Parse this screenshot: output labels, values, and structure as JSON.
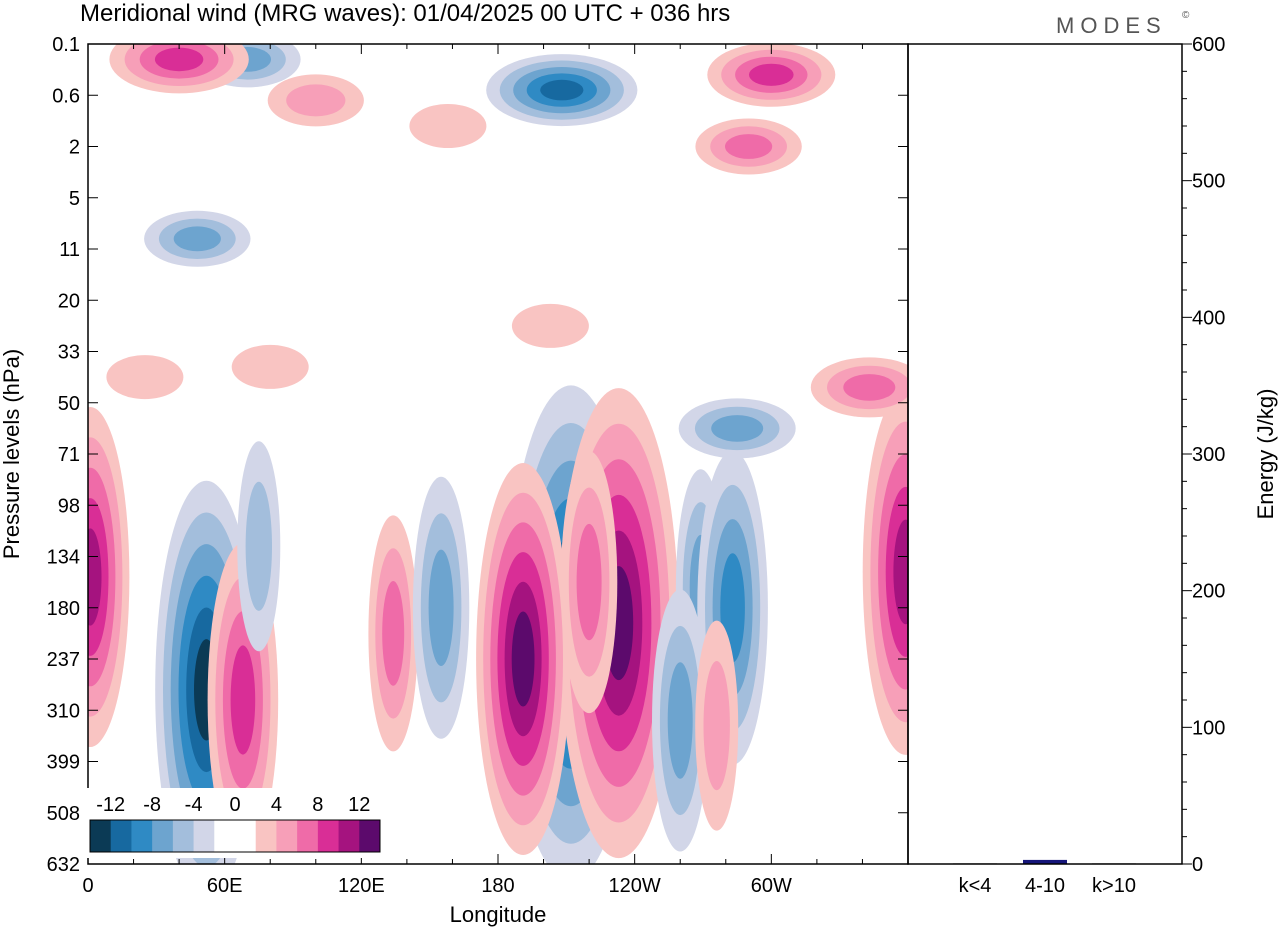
{
  "title": "Meridional wind (MRG waves):  01/04/2025  00 UTC  + 036 hrs",
  "logo": "MODES",
  "logo_mark": "©",
  "colors": {
    "neg6": "#0b3a55",
    "neg5": "#1769a0",
    "neg4": "#2f8ac4",
    "neg3": "#6da4cf",
    "neg2": "#a3bedc",
    "neg1": "#d2d6e8",
    "zero": "#ffffff",
    "pos1": "#f9c4c2",
    "pos2": "#f79fb8",
    "pos3": "#ef6ba8",
    "pos4": "#d92e96",
    "pos5": "#a5137f",
    "pos6": "#5c0a6c",
    "bar": "#16167a"
  },
  "chart_data": [
    {
      "type": "heatmap",
      "xlabel": "Longitude",
      "ylabel": "Pressure levels (hPa)",
      "x_ticks": [
        "0",
        "60E",
        "120E",
        "180",
        "120W",
        "60W"
      ],
      "y_ticks": [
        "0.1",
        "0.6",
        "2",
        "5",
        "11",
        "20",
        "33",
        "50",
        "71",
        "98",
        "134",
        "180",
        "237",
        "310",
        "399",
        "508",
        "632"
      ],
      "colorbar_labels": [
        "-12",
        "-8",
        "-4",
        "0",
        "4",
        "8",
        "12"
      ],
      "colorbar_levels": [
        -14,
        -12,
        -10,
        -8,
        -6,
        -4,
        -2,
        2,
        4,
        6,
        8,
        10,
        12,
        14
      ],
      "features": [
        {
          "lon": 212,
          "level": 11.5,
          "value": -16
        },
        {
          "lon": 233,
          "level": 11.3,
          "value": 15
        },
        {
          "lon": 191,
          "level": 12.0,
          "value": 12
        },
        {
          "lon": 220,
          "level": 10.5,
          "value": 7
        },
        {
          "lon": 52,
          "level": 12.6,
          "value": -13
        },
        {
          "lon": 68,
          "level": 12.8,
          "value": 9
        },
        {
          "lon": 1,
          "level": 10.4,
          "value": 10
        },
        {
          "lon": 134,
          "level": 11.5,
          "value": 6
        },
        {
          "lon": 155,
          "level": 11.0,
          "value": -7
        },
        {
          "lon": 269,
          "level": 10.6,
          "value": -6
        },
        {
          "lon": 283,
          "level": 11.0,
          "value": -9
        },
        {
          "lon": 260,
          "level": 13.2,
          "value": -7
        },
        {
          "lon": 276,
          "level": 13.3,
          "value": 5
        },
        {
          "lon": 359,
          "level": 10.3,
          "value": 11
        },
        {
          "lon": 208,
          "level": 0.9,
          "value": -10
        },
        {
          "lon": 70,
          "level": 0.3,
          "value": -6
        },
        {
          "lon": 40,
          "level": 0.3,
          "value": 9
        },
        {
          "lon": 300,
          "level": 0.6,
          "value": 8
        },
        {
          "lon": 290,
          "level": 2.0,
          "value": 6
        },
        {
          "lon": 100,
          "level": 1.1,
          "value": 5
        },
        {
          "lon": 158,
          "level": 1.6,
          "value": 3
        },
        {
          "lon": 48,
          "level": 3.8,
          "value": -6
        },
        {
          "lon": 285,
          "level": 7.5,
          "value": -7
        },
        {
          "lon": 343,
          "level": 6.7,
          "value": 7
        },
        {
          "lon": 75,
          "level": 9.8,
          "value": -5
        },
        {
          "lon": 203,
          "level": 5.5,
          "value": 3
        },
        {
          "lon": 25,
          "level": 6.5,
          "value": 3
        },
        {
          "lon": 80,
          "level": 6.3,
          "value": 3
        }
      ]
    },
    {
      "type": "bar",
      "ylabel": "Energy (J/kg)",
      "ylim": [
        0,
        600
      ],
      "y_ticks": [
        0,
        100,
        200,
        300,
        400,
        500,
        600
      ],
      "categories": [
        "k<4",
        "4-10",
        "k>10"
      ],
      "values": [
        0.5,
        3,
        0.5
      ]
    }
  ]
}
